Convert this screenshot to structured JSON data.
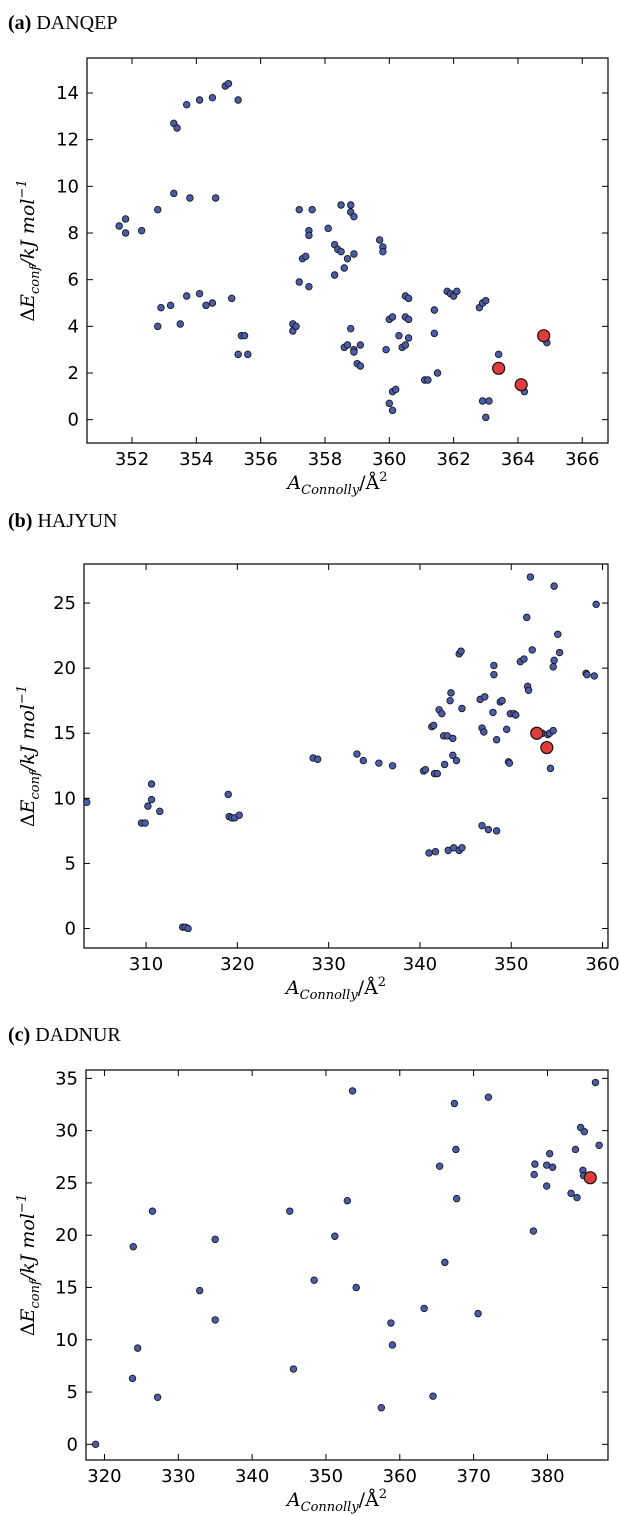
{
  "chart_data": [
    {
      "type": "scatter",
      "panel_label": "(a)",
      "panel_name": "DANQEP",
      "xlim": [
        350.6,
        366.8
      ],
      "ylim": [
        -1.0,
        15.5
      ],
      "xticks": [
        352,
        354,
        356,
        358,
        360,
        362,
        364,
        366
      ],
      "yticks": [
        0,
        2,
        4,
        6,
        8,
        10,
        12,
        14
      ],
      "xlabel": "A_Connolly/Å^2",
      "ylabel": "ΔE_conf/kJ mol^-1",
      "grid": false,
      "colors": {
        "points": "#4a5ba8",
        "highlight": "#e03c3c"
      },
      "points": [
        [
          351.6,
          8.3
        ],
        [
          351.8,
          8.6
        ],
        [
          351.8,
          8.0
        ],
        [
          352.3,
          8.1
        ],
        [
          352.8,
          9.0
        ],
        [
          352.8,
          4.0
        ],
        [
          352.9,
          4.8
        ],
        [
          353.2,
          4.9
        ],
        [
          353.3,
          9.7
        ],
        [
          353.3,
          12.7
        ],
        [
          353.4,
          12.5
        ],
        [
          353.5,
          4.1
        ],
        [
          353.7,
          5.3
        ],
        [
          353.7,
          13.5
        ],
        [
          353.8,
          9.5
        ],
        [
          354.1,
          13.7
        ],
        [
          354.1,
          5.4
        ],
        [
          354.3,
          4.9
        ],
        [
          354.5,
          13.8
        ],
        [
          354.5,
          5.0
        ],
        [
          354.6,
          9.5
        ],
        [
          354.9,
          14.3
        ],
        [
          355.0,
          14.4
        ],
        [
          355.1,
          5.2
        ],
        [
          355.3,
          13.7
        ],
        [
          355.3,
          2.8
        ],
        [
          355.4,
          3.6
        ],
        [
          355.5,
          3.6
        ],
        [
          355.6,
          2.8
        ],
        [
          357.0,
          3.8
        ],
        [
          357.0,
          4.1
        ],
        [
          357.1,
          4.0
        ],
        [
          357.2,
          5.9
        ],
        [
          357.2,
          9.0
        ],
        [
          357.3,
          6.9
        ],
        [
          357.4,
          7.0
        ],
        [
          357.5,
          8.1
        ],
        [
          357.5,
          7.9
        ],
        [
          357.5,
          5.7
        ],
        [
          357.6,
          9.0
        ],
        [
          358.1,
          8.2
        ],
        [
          358.3,
          7.5
        ],
        [
          358.3,
          6.2
        ],
        [
          358.4,
          7.3
        ],
        [
          358.5,
          7.2
        ],
        [
          358.5,
          9.2
        ],
        [
          358.6,
          3.1
        ],
        [
          358.6,
          6.5
        ],
        [
          358.7,
          3.2
        ],
        [
          358.7,
          6.9
        ],
        [
          358.8,
          9.2
        ],
        [
          358.8,
          8.9
        ],
        [
          358.8,
          3.9
        ],
        [
          358.9,
          7.1
        ],
        [
          358.9,
          8.7
        ],
        [
          358.9,
          3.0
        ],
        [
          358.9,
          2.9
        ],
        [
          359.0,
          2.4
        ],
        [
          359.1,
          2.3
        ],
        [
          359.1,
          3.2
        ],
        [
          359.7,
          7.7
        ],
        [
          359.8,
          7.4
        ],
        [
          359.8,
          7.2
        ],
        [
          359.9,
          3.0
        ],
        [
          360.0,
          4.3
        ],
        [
          360.0,
          0.7
        ],
        [
          360.1,
          4.4
        ],
        [
          360.1,
          1.2
        ],
        [
          360.1,
          0.4
        ],
        [
          360.2,
          1.3
        ],
        [
          360.3,
          3.6
        ],
        [
          360.4,
          3.1
        ],
        [
          360.5,
          5.3
        ],
        [
          360.5,
          4.4
        ],
        [
          360.5,
          3.2
        ],
        [
          360.6,
          5.2
        ],
        [
          360.6,
          4.3
        ],
        [
          360.6,
          3.5
        ],
        [
          361.1,
          1.7
        ],
        [
          361.2,
          1.7
        ],
        [
          361.4,
          4.7
        ],
        [
          361.4,
          3.7
        ],
        [
          361.5,
          2.0
        ],
        [
          361.8,
          5.5
        ],
        [
          361.9,
          5.4
        ],
        [
          362.0,
          5.3
        ],
        [
          362.1,
          5.5
        ],
        [
          362.8,
          4.8
        ],
        [
          362.9,
          5.0
        ],
        [
          362.9,
          0.8
        ],
        [
          363.0,
          5.1
        ],
        [
          363.0,
          0.1
        ],
        [
          363.1,
          0.8
        ],
        [
          363.4,
          2.8
        ],
        [
          364.2,
          1.2
        ],
        [
          364.9,
          3.3
        ]
      ],
      "highlight_points": [
        [
          363.4,
          2.2
        ],
        [
          364.1,
          1.5
        ],
        [
          364.8,
          3.6
        ]
      ]
    },
    {
      "type": "scatter",
      "panel_label": "(b)",
      "panel_name": "HAJYUN",
      "xlim": [
        303.2,
        360.6
      ],
      "ylim": [
        -1.5,
        28.0
      ],
      "xticks": [
        310,
        320,
        330,
        340,
        350,
        360
      ],
      "yticks": [
        0,
        5,
        10,
        15,
        20,
        25
      ],
      "xlabel": "A_Connolly/Å^2",
      "ylabel": "ΔE_conf/kJ mol^-1",
      "grid": false,
      "colors": {
        "points": "#4a5ba8",
        "highlight": "#e03c3c"
      },
      "points": [
        [
          303.5,
          9.7
        ],
        [
          309.5,
          8.1
        ],
        [
          309.9,
          8.1
        ],
        [
          310.2,
          9.4
        ],
        [
          310.6,
          9.9
        ],
        [
          310.6,
          11.1
        ],
        [
          311.5,
          9.0
        ],
        [
          314.0,
          0.1
        ],
        [
          314.3,
          0.1
        ],
        [
          314.6,
          0.0
        ],
        [
          319.0,
          10.3
        ],
        [
          319.1,
          8.6
        ],
        [
          319.4,
          8.5
        ],
        [
          319.7,
          8.5
        ],
        [
          320.2,
          8.7
        ],
        [
          328.3,
          13.1
        ],
        [
          328.8,
          13.0
        ],
        [
          333.1,
          13.4
        ],
        [
          333.8,
          12.9
        ],
        [
          335.5,
          12.7
        ],
        [
          337.0,
          12.5
        ],
        [
          340.4,
          12.1
        ],
        [
          340.6,
          12.2
        ],
        [
          341.0,
          5.8
        ],
        [
          341.3,
          15.5
        ],
        [
          341.5,
          15.6
        ],
        [
          341.6,
          11.9
        ],
        [
          341.7,
          5.9
        ],
        [
          341.9,
          11.9
        ],
        [
          342.1,
          16.8
        ],
        [
          342.4,
          16.5
        ],
        [
          342.6,
          14.8
        ],
        [
          342.7,
          12.6
        ],
        [
          343.0,
          14.8
        ],
        [
          343.1,
          6.0
        ],
        [
          343.3,
          17.5
        ],
        [
          343.4,
          18.1
        ],
        [
          343.6,
          14.6
        ],
        [
          343.6,
          13.3
        ],
        [
          343.7,
          6.2
        ],
        [
          344.0,
          12.9
        ],
        [
          344.3,
          21.1
        ],
        [
          344.3,
          6.0
        ],
        [
          344.5,
          21.3
        ],
        [
          344.6,
          6.2
        ],
        [
          344.6,
          16.9
        ],
        [
          346.6,
          17.6
        ],
        [
          346.8,
          15.4
        ],
        [
          346.8,
          7.9
        ],
        [
          347.0,
          15.1
        ],
        [
          347.1,
          17.8
        ],
        [
          347.5,
          7.6
        ],
        [
          348.0,
          16.6
        ],
        [
          348.1,
          19.5
        ],
        [
          348.1,
          20.2
        ],
        [
          348.4,
          14.5
        ],
        [
          348.8,
          17.4
        ],
        [
          349.0,
          17.5
        ],
        [
          348.4,
          7.5
        ],
        [
          349.5,
          15.3
        ],
        [
          349.7,
          12.8
        ],
        [
          349.8,
          12.7
        ],
        [
          349.9,
          16.5
        ],
        [
          350.3,
          16.5
        ],
        [
          350.5,
          16.4
        ],
        [
          351.0,
          20.5
        ],
        [
          351.4,
          20.7
        ],
        [
          351.7,
          23.9
        ],
        [
          351.8,
          18.6
        ],
        [
          351.9,
          18.3
        ],
        [
          352.3,
          21.4
        ],
        [
          352.1,
          27.0
        ],
        [
          352.5,
          15.1
        ],
        [
          353.4,
          15.0
        ],
        [
          354.0,
          14.9
        ],
        [
          354.2,
          15.0
        ],
        [
          354.3,
          12.3
        ],
        [
          354.6,
          15.2
        ],
        [
          354.6,
          20.1
        ],
        [
          354.7,
          20.6
        ],
        [
          354.7,
          26.3
        ],
        [
          355.1,
          22.6
        ],
        [
          355.3,
          21.2
        ],
        [
          358.2,
          19.6
        ],
        [
          358.3,
          19.5
        ],
        [
          359.1,
          19.4
        ],
        [
          359.3,
          24.9
        ]
      ],
      "highlight_points": [
        [
          352.8,
          15.0
        ],
        [
          353.9,
          13.9
        ]
      ]
    },
    {
      "type": "scatter",
      "panel_label": "(c)",
      "panel_name": "DADNUR",
      "xlim": [
        317.5,
        388.2
      ],
      "ylim": [
        -1.5,
        35.8
      ],
      "xticks": [
        320,
        330,
        340,
        350,
        360,
        370,
        380
      ],
      "yticks": [
        0,
        5,
        10,
        15,
        20,
        25,
        30,
        35
      ],
      "xlabel": "A_Connolly/Å^2",
      "ylabel": "ΔE_conf/kJ mol^-1",
      "grid": false,
      "colors": {
        "points": "#4a5ba8",
        "highlight": "#e03c3c"
      },
      "points": [
        [
          318.8,
          0.0
        ],
        [
          323.8,
          6.3
        ],
        [
          323.9,
          18.9
        ],
        [
          324.5,
          9.2
        ],
        [
          326.5,
          22.3
        ],
        [
          327.2,
          4.5
        ],
        [
          332.9,
          14.7
        ],
        [
          335.0,
          11.9
        ],
        [
          335.0,
          19.6
        ],
        [
          345.1,
          22.3
        ],
        [
          345.6,
          7.2
        ],
        [
          348.4,
          15.7
        ],
        [
          351.2,
          19.9
        ],
        [
          352.9,
          23.3
        ],
        [
          353.6,
          33.8
        ],
        [
          354.1,
          15.0
        ],
        [
          357.5,
          3.5
        ],
        [
          358.8,
          11.6
        ],
        [
          359.0,
          9.5
        ],
        [
          363.3,
          13.0
        ],
        [
          364.5,
          4.6
        ],
        [
          365.4,
          26.6
        ],
        [
          366.1,
          17.4
        ],
        [
          367.4,
          32.6
        ],
        [
          367.6,
          28.2
        ],
        [
          367.7,
          23.5
        ],
        [
          370.6,
          12.5
        ],
        [
          372.0,
          33.2
        ],
        [
          378.1,
          20.4
        ],
        [
          378.3,
          26.8
        ],
        [
          378.2,
          25.8
        ],
        [
          379.9,
          24.7
        ],
        [
          379.9,
          26.7
        ],
        [
          380.3,
          27.8
        ],
        [
          380.7,
          26.5
        ],
        [
          383.2,
          24.0
        ],
        [
          383.8,
          28.2
        ],
        [
          384.0,
          23.6
        ],
        [
          384.5,
          30.3
        ],
        [
          384.8,
          26.2
        ],
        [
          384.9,
          25.7
        ],
        [
          385.0,
          29.9
        ],
        [
          386.5,
          34.6
        ],
        [
          387.0,
          28.6
        ]
      ],
      "highlight_points": [
        [
          385.8,
          25.5
        ]
      ]
    }
  ]
}
